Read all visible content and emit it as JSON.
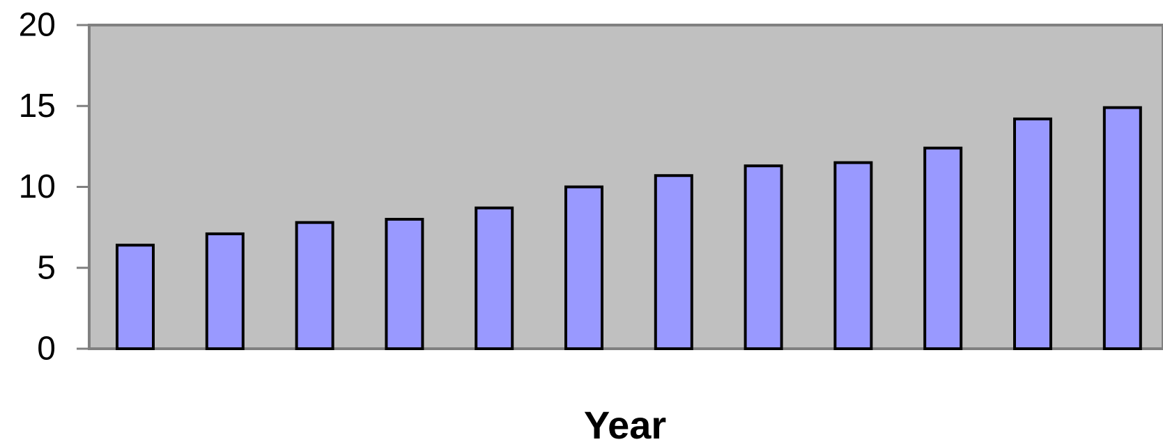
{
  "chart_data": {
    "type": "bar",
    "title": "",
    "xlabel": "Year",
    "ylabel": "",
    "ylim": [
      0,
      20
    ],
    "yticks": [
      "0",
      "5",
      "10",
      "15",
      "20"
    ],
    "categories": [
      "",
      "",
      "",
      "",
      "",
      "",
      "",
      "",
      "",
      "",
      "",
      ""
    ],
    "values": [
      6.4,
      7.1,
      7.8,
      8.0,
      8.7,
      10.0,
      10.7,
      11.3,
      11.5,
      12.4,
      14.2,
      14.9
    ],
    "grid": false,
    "legend": "none",
    "colors": {
      "bar_fill": "#9999ff",
      "bar_stroke": "#000000",
      "plot_background": "#c0c0c0",
      "plot_border": "#808080",
      "axis": "#808080"
    }
  }
}
